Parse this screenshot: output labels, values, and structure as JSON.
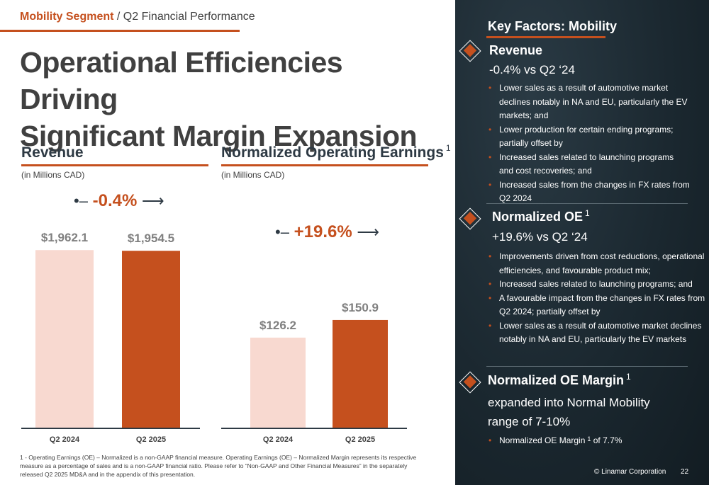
{
  "breadcrumb": {
    "segment": "Mobility Segment",
    "rest": "/ Q2 Financial Performance"
  },
  "title": {
    "line1": "Operational Efficiencies Driving",
    "line2": "Significant Margin Expansion"
  },
  "colors": {
    "accent": "#c5501e",
    "light_bar": "#f8d9d0",
    "panel": "#1b2830"
  },
  "chart_data": [
    {
      "type": "bar",
      "title": "Revenue",
      "unit_label": "(in Millions CAD)",
      "categories": [
        "Q2 2024",
        "Q2 2025"
      ],
      "values": [
        1962.1,
        1954.5
      ],
      "value_labels": [
        "$1,962.1",
        "$1,954.5"
      ],
      "change_label": "-0.4%",
      "ylim": [
        0,
        2050
      ]
    },
    {
      "type": "bar",
      "title": "Normalized Operating Earnings",
      "title_superscript": "1",
      "unit_label": "(in Millions CAD)",
      "categories": [
        "Q2 2024",
        "Q2 2025"
      ],
      "values": [
        126.2,
        150.9
      ],
      "value_labels": [
        "$126.2",
        "$150.9"
      ],
      "change_label": "+19.6%",
      "ylim": [
        0,
        260
      ]
    }
  ],
  "footnote": "1 - Operating Earnings (OE) – Normalized is a non-GAAP financial measure. Operating Earnings (OE) – Normalized Margin represents its respective measure as a percentage of sales and is a non-GAAP financial ratio. Please refer to “Non-GAAP and Other Financial Measures” in the separately released Q2 2025 MD&A and in the appendix of this presentation.",
  "key_factors": {
    "heading": "Key Factors: Mobility",
    "revenue": {
      "title": "Revenue",
      "subtitle": "-0.4% vs Q2 ‘24",
      "bullets": [
        "Lower sales as a result of automotive market declines notably in NA and EU, particularly the EV markets; and",
        "Lower production for certain ending programs; partially offset by",
        "Increased sales related to launching programs and cost recoveries; and",
        "Increased sales from the changes in FX rates from Q2 2024"
      ]
    },
    "oe": {
      "title": "Normalized OE",
      "sup": "1",
      "subtitle": "+19.6% vs Q2 ‘24",
      "bullets": [
        "Improvements driven from cost reductions, operational efficiencies, and favourable product mix;",
        "Increased sales related to launching programs; and",
        "A favourable impact from the changes in FX rates from Q2 2024; partially offset by",
        "Lower sales as a result of automotive market declines notably in NA and EU, particularly the EV markets"
      ]
    },
    "margin": {
      "title": "Normalized OE Margin",
      "sup": "1",
      "subtitle_line1": "expanded into Normal Mobility",
      "subtitle_line2": "range of 7-10%",
      "bullet_prefix": "Normalized OE Margin",
      "bullet_sup": "1",
      "bullet_suffix": "of 7.7%"
    }
  },
  "footer": {
    "corporation": "© Linamar Corporation",
    "page": "22"
  }
}
